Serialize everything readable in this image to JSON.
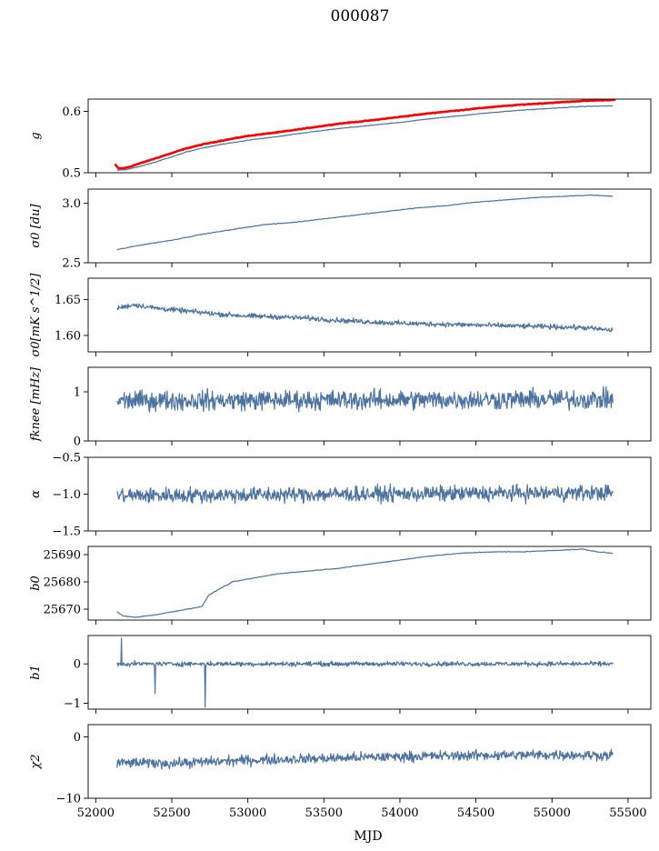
{
  "title": "000087",
  "xlabel": "MJD",
  "colors": {
    "primary": "#4c72a0",
    "reference": "#ff0000",
    "axes": "#000000"
  },
  "chart_data": {
    "type": "line",
    "title": "000087",
    "xlabel": "MJD",
    "xlim": [
      51950,
      55650
    ],
    "xticks": [
      52000,
      52500,
      53000,
      53500,
      54000,
      54500,
      55000,
      55500
    ],
    "xtick_labels": [
      "52000",
      "52500",
      "53000",
      "53500",
      "54000",
      "54500",
      "55000",
      "55500"
    ],
    "panels": [
      {
        "ylabel": "g",
        "ylim": [
          0.5,
          0.62
        ],
        "yticks": [
          0.5,
          0.6
        ],
        "ytick_labels": [
          "0.5",
          "0.6"
        ],
        "series": [
          {
            "color": "#ff0000",
            "width": 2.6,
            "x": [
              52125,
              52150,
              52200,
              52300,
              52400,
              52500,
              52600,
              52700,
              52800,
              53000,
              53200,
              53400,
              53600,
              53800,
              54000,
              54200,
              54400,
              54600,
              54800,
              55000,
              55200,
              55420
            ],
            "y": [
              0.514,
              0.507,
              0.508,
              0.516,
              0.524,
              0.532,
              0.54,
              0.546,
              0.551,
              0.56,
              0.566,
              0.573,
              0.58,
              0.585,
              0.591,
              0.597,
              0.602,
              0.607,
              0.611,
              0.614,
              0.617,
              0.619
            ]
          },
          {
            "color": "#4c72a0",
            "width": 1.2,
            "x": [
              52140,
              52200,
              52300,
              52400,
              52500,
              52600,
              52700,
              52800,
              53000,
              53200,
              53400,
              53600,
              53800,
              54000,
              54200,
              54400,
              54600,
              54800,
              55000,
              55200,
              55400
            ],
            "y": [
              0.504,
              0.505,
              0.511,
              0.518,
              0.526,
              0.534,
              0.54,
              0.545,
              0.553,
              0.559,
              0.566,
              0.572,
              0.577,
              0.582,
              0.588,
              0.593,
              0.598,
              0.602,
              0.605,
              0.608,
              0.609
            ]
          }
        ]
      },
      {
        "ylabel": "σ0 [du]",
        "ylim": [
          2.5,
          3.12
        ],
        "yticks": [
          2.5,
          3.0
        ],
        "ytick_labels": [
          "2.5",
          "3.0"
        ],
        "series": [
          {
            "color": "#4c72a0",
            "width": 1.2,
            "x": [
              52140,
              52300,
              52500,
              52700,
              52900,
              53100,
              53300,
              53500,
              53700,
              53900,
              54100,
              54300,
              54500,
              54700,
              54900,
              55100,
              55250,
              55400
            ],
            "y": [
              2.61,
              2.65,
              2.69,
              2.74,
              2.78,
              2.82,
              2.84,
              2.87,
              2.9,
              2.93,
              2.96,
              2.98,
              3.01,
              3.03,
              3.05,
              3.06,
              3.07,
              3.06
            ]
          }
        ]
      },
      {
        "ylabel": "σ0[mK s^1/2]",
        "ylim": [
          1.577,
          1.68
        ],
        "yticks": [
          1.6,
          1.65
        ],
        "ytick_labels": [
          "1.60",
          "1.65"
        ],
        "series": [
          {
            "color": "#4c72a0",
            "width": 1.2,
            "noise": 0.003,
            "x": [
              52140,
              52250,
              52400,
              52600,
              52800,
              53000,
              53200,
              53400,
              53600,
              53800,
              54000,
              54200,
              54400,
              54600,
              54800,
              55000,
              55200,
              55400
            ],
            "y": [
              1.638,
              1.643,
              1.638,
              1.634,
              1.63,
              1.627,
              1.626,
              1.624,
              1.621,
              1.619,
              1.617,
              1.616,
              1.615,
              1.614,
              1.613,
              1.612,
              1.611,
              1.607
            ]
          }
        ]
      },
      {
        "ylabel": "fknee [mHz]",
        "ylim": [
          0,
          1.5
        ],
        "yticks": [
          0,
          1
        ],
        "ytick_labels": [
          "0",
          "1"
        ],
        "series": [
          {
            "color": "#4c72a0",
            "width": 1.2,
            "noise": 0.17,
            "x": [
              52140,
              55400
            ],
            "y": [
              0.82,
              0.85
            ]
          }
        ]
      },
      {
        "ylabel": "α",
        "ylim": [
          -1.5,
          -0.5
        ],
        "yticks": [
          -1.5,
          -1.0,
          -0.5
        ],
        "ytick_labels": [
          "−1.5",
          "−1.0",
          "−0.5"
        ],
        "series": [
          {
            "color": "#4c72a0",
            "width": 1.2,
            "noise": 0.09,
            "x": [
              52140,
              55400
            ],
            "y": [
              -1.02,
              -0.98
            ]
          }
        ]
      },
      {
        "ylabel": "b0",
        "ylim": [
          25666,
          25693
        ],
        "yticks": [
          25670,
          25680,
          25690
        ],
        "ytick_labels": [
          "25670",
          "25680",
          "25690"
        ],
        "series": [
          {
            "color": "#4c72a0",
            "width": 1.2,
            "x": [
              52140,
              52180,
              52260,
              52400,
              52500,
              52600,
              52700,
              52720,
              52740,
              52800,
              52900,
              53000,
              53200,
              53400,
              53600,
              53800,
              54000,
              54200,
              54400,
              54600,
              54800,
              55000,
              55200,
              55300,
              55400
            ],
            "y": [
              25669,
              25667.5,
              25667,
              25668,
              25669,
              25670,
              25671,
              25673,
              25675,
              25677,
              25680,
              25681,
              25683,
              25684,
              25685,
              25686.5,
              25688,
              25689.5,
              25690.5,
              25691,
              25691,
              25691.5,
              25692,
              25691,
              25690.5
            ]
          }
        ]
      },
      {
        "ylabel": "b1",
        "ylim": [
          -1.15,
          0.72
        ],
        "yticks": [
          -1,
          0
        ],
        "ytick_labels": [
          "−1",
          "0"
        ],
        "series": [
          {
            "color": "#4c72a0",
            "width": 1.2,
            "noise": 0.05,
            "x": [
              52140,
              55400
            ],
            "y": [
              0.0,
              0.0
            ]
          }
        ],
        "spikes": [
          {
            "x": 52170,
            "y": 0.65
          },
          {
            "x": 52390,
            "y": -0.75
          },
          {
            "x": 52720,
            "y": -1.1
          }
        ]
      },
      {
        "ylabel": "χ2",
        "ylim": [
          -10,
          2
        ],
        "yticks": [
          -10,
          0
        ],
        "ytick_labels": [
          "−10",
          "0"
        ],
        "series": [
          {
            "color": "#4c72a0",
            "width": 1.2,
            "noise": 0.7,
            "x": [
              52140,
              52500,
              53000,
              53500,
              54000,
              54500,
              55000,
              55400
            ],
            "y": [
              -4.2,
              -4.3,
              -3.8,
              -3.5,
              -3.2,
              -3.0,
              -2.9,
              -3.0
            ]
          }
        ]
      }
    ]
  }
}
